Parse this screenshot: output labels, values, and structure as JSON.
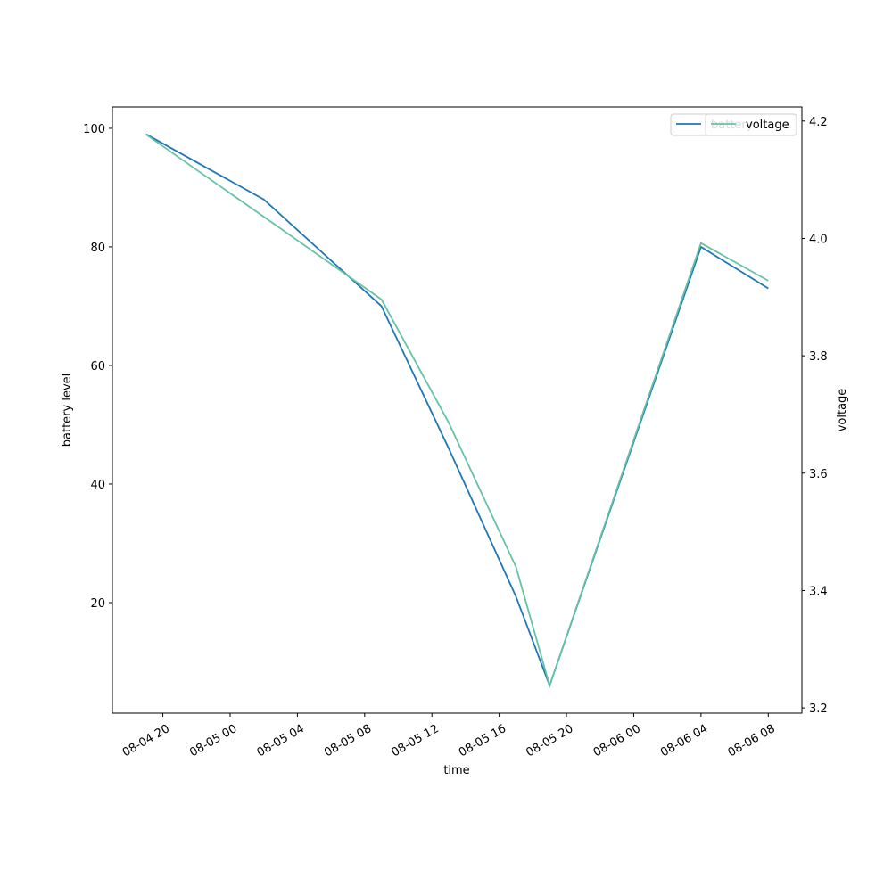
{
  "chart_data": {
    "type": "line",
    "x": [
      "08-04 19",
      "08-05 02",
      "08-05 09",
      "08-05 13",
      "08-05 17",
      "08-05 19",
      "08-06 04",
      "08-06 08"
    ],
    "xlim": [
      "08-04 17",
      "08-06 10"
    ],
    "xticks": [
      "08-04 20",
      "08-05 00",
      "08-05 04",
      "08-05 08",
      "08-05 12",
      "08-05 16",
      "08-05 20",
      "08-06 00",
      "08-06 04",
      "08-06 08"
    ],
    "xlabel": "time",
    "ylabel": "battery level",
    "y2label": "voltage",
    "ylim": [
      1.35,
      103.6
    ],
    "yticks": [
      20,
      40,
      60,
      80,
      100
    ],
    "y2lim": [
      3.191,
      4.224
    ],
    "y2ticks": [
      3.2,
      3.4,
      3.6,
      3.8,
      {
        "value": 4,
        "label": "4.0"
      },
      4.2
    ],
    "series": [
      {
        "name": "battery",
        "color": "#1f77b4",
        "values": [
          99,
          88,
          70,
          46,
          21,
          6,
          80,
          73
        ]
      },
      {
        "name": "voltage",
        "color": "#66c2a5",
        "axis": "y2",
        "values": [
          4.177,
          4.037,
          3.896,
          3.686,
          3.44,
          3.238,
          3.992,
          3.928
        ]
      }
    ]
  }
}
